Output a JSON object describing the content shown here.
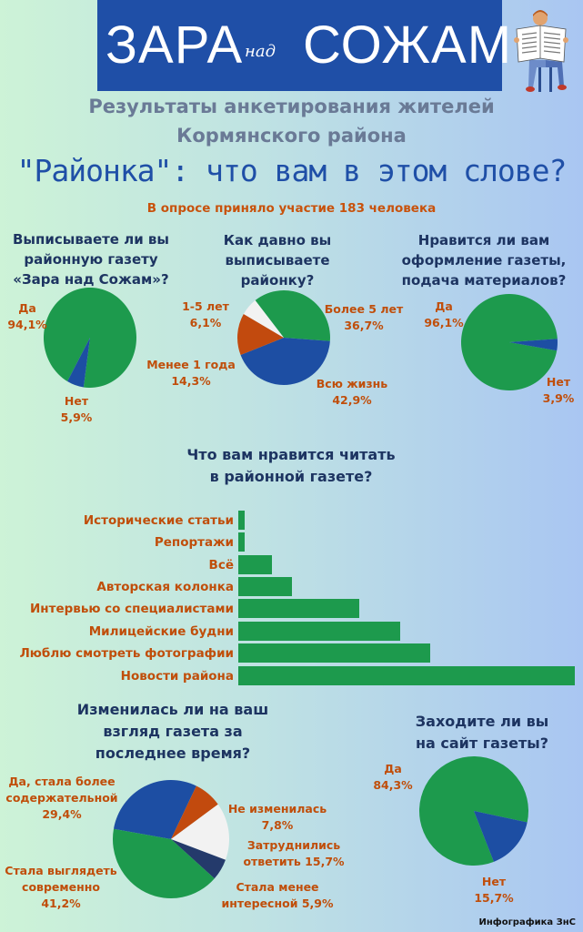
{
  "header": {
    "brand_left": "ЗАРА",
    "brand_mid": "над",
    "brand_right": "СОЖАМ",
    "subtitle_line1": "Результаты анкетирования жителей",
    "subtitle_line2": "Кормянского района",
    "title": "\"Районка\": что вам в этом слове?",
    "participants": "В опросе приняло участие 183 человека"
  },
  "colors": {
    "green": "#1d9a4d",
    "blue": "#1d4ea3",
    "orange": "#c24a0e",
    "light": "#f2f2f2",
    "navy": "#243a6b",
    "label_orange": "#c04e0a",
    "question_text": "#1d3461"
  },
  "chart_data": [
    {
      "type": "pie",
      "title_lines": [
        "Выписываете ли вы",
        "районную газету",
        "«Зара над Сожам»?"
      ],
      "slices": [
        {
          "label": "Да",
          "value": 94.1,
          "value_text": "94,1%",
          "color": "#1d9a4d"
        },
        {
          "label": "Нет",
          "value": 5.9,
          "value_text": "5,9%",
          "color": "#1d4ea3"
        }
      ]
    },
    {
      "type": "pie",
      "title_lines": [
        "Как давно вы",
        "выписываете",
        "районку?"
      ],
      "slices": [
        {
          "label": "Более 5 лет",
          "value": 36.7,
          "value_text": "36,7%",
          "color": "#1d9a4d"
        },
        {
          "label": "Всю жизнь",
          "value": 42.9,
          "value_text": "42,9%",
          "color": "#1d4ea3"
        },
        {
          "label": "Менее 1 года",
          "value": 14.3,
          "value_text": "14,3%",
          "color": "#c24a0e"
        },
        {
          "label": "1-5 лет",
          "value": 6.1,
          "value_text": "6,1%",
          "color": "#f2f2f2"
        }
      ]
    },
    {
      "type": "pie",
      "title_lines": [
        "Нравится ли вам",
        "оформление газеты,",
        "подача материалов?"
      ],
      "slices": [
        {
          "label": "Да",
          "value": 96.1,
          "value_text": "96,1%",
          "color": "#1d9a4d"
        },
        {
          "label": "Нет",
          "value": 3.9,
          "value_text": "3,9%",
          "color": "#1d4ea3"
        }
      ]
    },
    {
      "type": "bar",
      "orientation": "horizontal",
      "title_lines": [
        "Что вам нравится читать",
        "в районной газете?"
      ],
      "categories": [
        "Исторические статьи",
        "Репортажи",
        "Всё",
        "Авторская колонка",
        "Интервью со специалистами",
        "Милицейские будни",
        "Люблю смотреть фотографии",
        "Новости района"
      ],
      "values": [
        2,
        2,
        10,
        16,
        36,
        48,
        57,
        100
      ],
      "color": "#1d9a4d"
    },
    {
      "type": "pie",
      "title_lines": [
        "Изменилась ли на ваш",
        "взгляд газета за",
        "последнее время?"
      ],
      "slices": [
        {
          "label": "Да, стала более содержательной",
          "label_lines": [
            "Да, стала более",
            "содержательной"
          ],
          "value": 29.4,
          "value_text": "29,4%",
          "color": "#1d4ea3"
        },
        {
          "label": "Не изменилась",
          "label_lines": [
            "Не изменилась"
          ],
          "value": 7.8,
          "value_text": "7,8%",
          "color": "#c24a0e"
        },
        {
          "label": "Затруднились ответить",
          "label_lines": [
            "Затруднились",
            "ответить"
          ],
          "value": 15.7,
          "value_text": "15,7%",
          "color": "#f2f2f2"
        },
        {
          "label": "Стала менее интересной",
          "label_lines": [
            "Стала менее",
            "интересной"
          ],
          "value": 5.9,
          "value_text": "5,9%",
          "color": "#243a6b"
        },
        {
          "label": "Стала выглядеть современно",
          "label_lines": [
            "Стала выглядеть",
            "современно"
          ],
          "value": 41.2,
          "value_text": "41,2%",
          "color": "#1d9a4d"
        }
      ]
    },
    {
      "type": "pie",
      "title_lines": [
        "Заходите ли вы",
        "на сайт газеты?"
      ],
      "slices": [
        {
          "label": "Да",
          "value": 84.3,
          "value_text": "84,3%",
          "color": "#1d9a4d"
        },
        {
          "label": "Нет",
          "value": 15.7,
          "value_text": "15,7%",
          "color": "#1d4ea3"
        }
      ]
    }
  ],
  "footer": {
    "credit": "Инфографика ЗнС"
  }
}
